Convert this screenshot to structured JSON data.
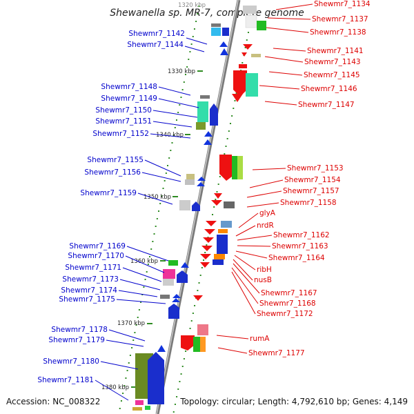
{
  "title": "Shewanella sp. MR-7, complete genome",
  "top_kbp": "1320 kbp",
  "footer": {
    "accession": "Accession: NC_008322",
    "topology": "Topology: circular; Length: 4,792,610 bp; Genes: 4,149"
  },
  "colors": {
    "forward_label": "#0000cc",
    "reverse_label": "#dd0000",
    "backbone": "#9a9a9a",
    "tick": "#2e8b22"
  },
  "kbp_marks": [
    "1330 kbp",
    "1340 kbp",
    "1350 kbp",
    "1360 kbp",
    "1370 kbp",
    "1380 kbp"
  ],
  "left_genes": [
    "Shewmr7_1142",
    "Shewmr7_1144",
    "Shewmr7_1148",
    "Shewmr7_1149",
    "Shewmr7_1150",
    "Shewmr7_1151",
    "Shewmr7_1152",
    "Shewmr7_1155",
    "Shewmr7_1156",
    "Shewmr7_1159",
    "Shewmr7_1169",
    "Shewmr7_1170",
    "Shewmr7_1171",
    "Shewmr7_1173",
    "Shewmr7_1174",
    "Shewmr7_1175",
    "Shewmr7_1178",
    "Shewmr7_1179",
    "Shewmr7_1180",
    "Shewmr7_1181"
  ],
  "right_genes": [
    "Shewmr7_1134",
    "Shewmr7_1137",
    "Shewmr7_1138",
    "Shewmr7_1141",
    "Shewmr7_1143",
    "Shewmr7_1145",
    "Shewmr7_1146",
    "Shewmr7_1147",
    "Shewmr7_1153",
    "Shewmr7_1154",
    "Shewmr7_1157",
    "Shewmr7_1158",
    "glyA",
    "nrdR",
    "Shewmr7_1162",
    "Shewmr7_1163",
    "Shewmr7_1164",
    "ribH",
    "nusB",
    "Shewmr7_1167",
    "Shewmr7_1168",
    "Shewmr7_1172",
    "rumA",
    "Shewmr7_1177"
  ]
}
